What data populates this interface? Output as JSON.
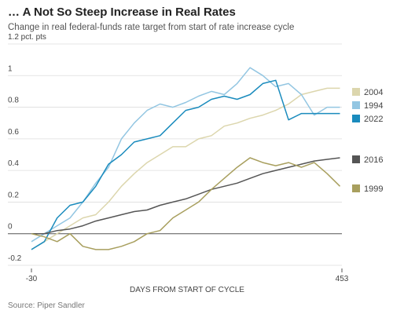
{
  "chart_data": {
    "type": "line",
    "title": "… A Not So Steep Increase in Real Rates",
    "subtitle": "Change in real federal-funds rate target from start of rate increase cycle",
    "x_label": "DAYS FROM START OF CYCLE",
    "source": "Source: Piper Sandler",
    "x": [
      -30,
      -10,
      10,
      30,
      50,
      70,
      90,
      110,
      130,
      150,
      170,
      190,
      210,
      230,
      250,
      270,
      290,
      310,
      330,
      350,
      370,
      390,
      410,
      430,
      450
    ],
    "xlim": [
      -30,
      453
    ],
    "xticks": [
      -30,
      453
    ],
    "ylim": [
      -0.2,
      1.2
    ],
    "yticks": [
      -0.2,
      0,
      0.2,
      0.4,
      0.6,
      0.8,
      1.0,
      {
        "value": 1.2,
        "label": "1.2 pct. pts"
      }
    ],
    "grid": true,
    "legend": "right",
    "series": [
      {
        "name": "2004",
        "color": "#dcd6ad",
        "values": [
          -0.1,
          -0.05,
          0.0,
          0.05,
          0.1,
          0.12,
          0.2,
          0.3,
          0.38,
          0.45,
          0.5,
          0.55,
          0.55,
          0.6,
          0.62,
          0.68,
          0.7,
          0.73,
          0.75,
          0.78,
          0.82,
          0.88,
          0.9,
          0.92,
          0.92
        ]
      },
      {
        "name": "1994",
        "color": "#93c6e2",
        "values": [
          -0.05,
          0.0,
          0.05,
          0.1,
          0.2,
          0.32,
          0.42,
          0.6,
          0.7,
          0.78,
          0.82,
          0.8,
          0.83,
          0.87,
          0.9,
          0.88,
          0.95,
          1.05,
          1.0,
          0.93,
          0.95,
          0.88,
          0.75,
          0.8,
          0.8
        ]
      },
      {
        "name": "2022",
        "color": "#1a8bbd",
        "values": [
          -0.1,
          -0.05,
          0.1,
          0.18,
          0.2,
          0.3,
          0.44,
          0.5,
          0.58,
          0.6,
          0.62,
          0.7,
          0.78,
          0.8,
          0.85,
          0.87,
          0.85,
          0.88,
          0.95,
          0.97,
          0.72,
          0.76,
          0.76,
          0.76,
          0.76
        ]
      },
      {
        "name": "2016",
        "color": "#555555",
        "values": [
          0.0,
          0.0,
          0.02,
          0.03,
          0.05,
          0.08,
          0.1,
          0.12,
          0.14,
          0.15,
          0.18,
          0.2,
          0.22,
          0.25,
          0.28,
          0.3,
          0.32,
          0.35,
          0.38,
          0.4,
          0.42,
          0.44,
          0.46,
          0.47,
          0.48
        ]
      },
      {
        "name": "1999",
        "color": "#a89f5e",
        "values": [
          0.0,
          -0.02,
          -0.05,
          0.0,
          -0.08,
          -0.1,
          -0.1,
          -0.08,
          -0.05,
          0.0,
          0.02,
          0.1,
          0.15,
          0.2,
          0.28,
          0.35,
          0.42,
          0.48,
          0.45,
          0.43,
          0.45,
          0.42,
          0.45,
          0.38,
          0.3
        ]
      }
    ]
  }
}
